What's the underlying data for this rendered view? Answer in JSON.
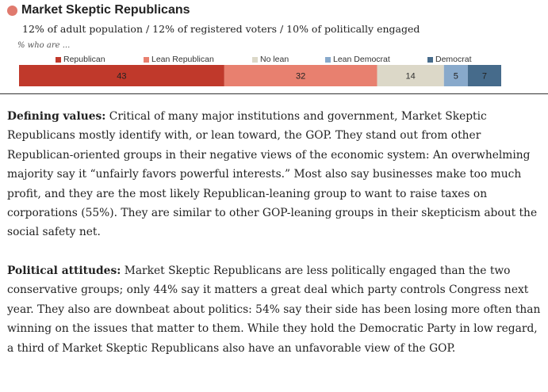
{
  "header": {
    "title": "Market Skeptic Republicans",
    "dot_color": "#e07a6e",
    "subtitle": "12% of adult population / 12% of registered voters / 10% of politically engaged",
    "who_are": "% who are ..."
  },
  "chart_data": {
    "type": "bar",
    "orientation": "horizontal-stacked",
    "title": "",
    "categories": [
      "Market Skeptic Republicans"
    ],
    "series": [
      {
        "name": "Republican",
        "color": "#c0392b",
        "values": [
          43
        ]
      },
      {
        "name": "Lean Republican",
        "color": "#e8806f",
        "values": [
          32
        ]
      },
      {
        "name": "No lean",
        "color": "#dcd8c8",
        "values": [
          14
        ]
      },
      {
        "name": "Lean Democrat",
        "color": "#88a9cb",
        "values": [
          5
        ]
      },
      {
        "name": "Democrat",
        "color": "#466b8b",
        "values": [
          7
        ]
      }
    ],
    "legend": "top",
    "grid": false
  },
  "sections": [
    {
      "heading": "Defining values:",
      "text": " Critical of many major institutions and government, Market Skeptic Republicans mostly identify with, or lean toward, the GOP. They stand out from other Republican-oriented groups in their negative views of the economic system: An overwhelming majority say it “unfairly favors powerful interests.” Most also say businesses make too much profit, and they are the most likely Republican-leaning group to want to raise taxes on corporations (55%). They are similar to other GOP-leaning groups in their skepticism about the social safety net."
    },
    {
      "heading": "Political attitudes:",
      "text": " Market Skeptic Republicans are less politically engaged than the two conservative groups; only 44% say it matters a great deal which party controls Congress next year. They also are downbeat about politics: 54% say their side has been losing more often than winning on the issues that matter to them. While they hold the Democratic Party in low regard, a third of Market Skeptic Republicans also have an unfavorable view of the GOP."
    }
  ]
}
